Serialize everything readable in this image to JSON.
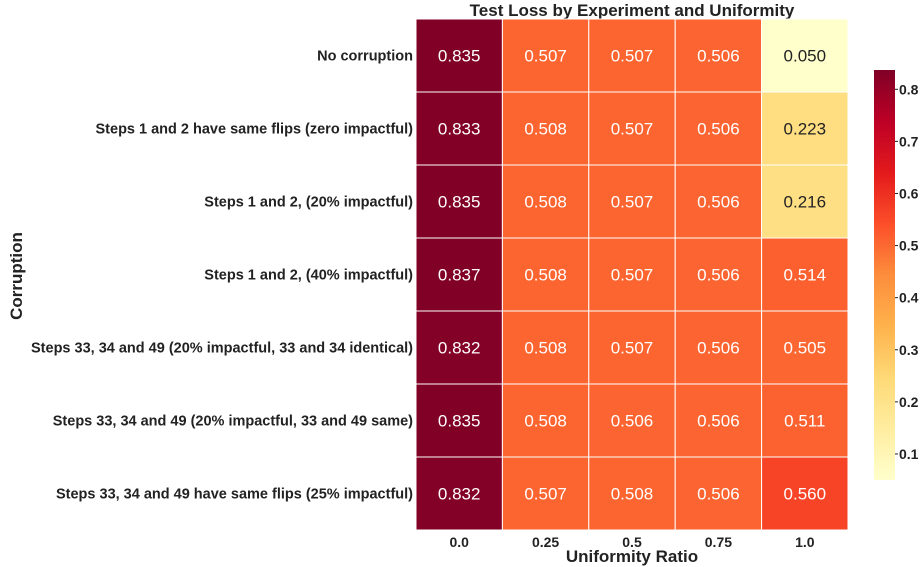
{
  "chart_data": {
    "type": "heatmap",
    "title": "Test Loss by Experiment and Uniformity",
    "xlabel": "Uniformity Ratio",
    "ylabel": "Corruption",
    "x_categories": [
      "0.0",
      "0.25",
      "0.5",
      "0.75",
      "1.0"
    ],
    "y_categories": [
      "No corruption",
      "Steps 1 and 2 have same flips (zero impactful)",
      "Steps 1 and 2, (20% impactful)",
      "Steps 1 and 2, (40% impactful)",
      "Steps 33, 34 and 49 (20% impactful, 33 and 34 identical)",
      "Steps 33, 34 and 49 (20% impactful, 33 and 49 same)",
      "Steps 33, 34 and 49 have same flips (25% impactful)"
    ],
    "values": [
      [
        0.835,
        0.507,
        0.507,
        0.506,
        0.05
      ],
      [
        0.833,
        0.508,
        0.507,
        0.506,
        0.223
      ],
      [
        0.835,
        0.508,
        0.507,
        0.506,
        0.216
      ],
      [
        0.837,
        0.508,
        0.507,
        0.506,
        0.514
      ],
      [
        0.832,
        0.508,
        0.507,
        0.506,
        0.505
      ],
      [
        0.835,
        0.508,
        0.506,
        0.506,
        0.511
      ],
      [
        0.832,
        0.507,
        0.508,
        0.506,
        0.56
      ]
    ],
    "value_format": 3,
    "colormap": "YlOrRd",
    "colormap_stops": [
      "#ffffcc",
      "#ffeda0",
      "#fed976",
      "#feb24c",
      "#fd8d3c",
      "#fc4e2a",
      "#e31a1c",
      "#bd0026",
      "#800026"
    ],
    "vmin": 0.05,
    "vmax": 0.837,
    "colorbar_ticks": [
      "0.1",
      "0.2",
      "0.3",
      "0.4",
      "0.5",
      "0.6",
      "0.7",
      "0.8"
    ],
    "colorbar_tick_values": [
      0.1,
      0.2,
      0.3,
      0.4,
      0.5,
      0.6,
      0.7,
      0.8
    ],
    "grid_line_color": "#ffffff"
  }
}
